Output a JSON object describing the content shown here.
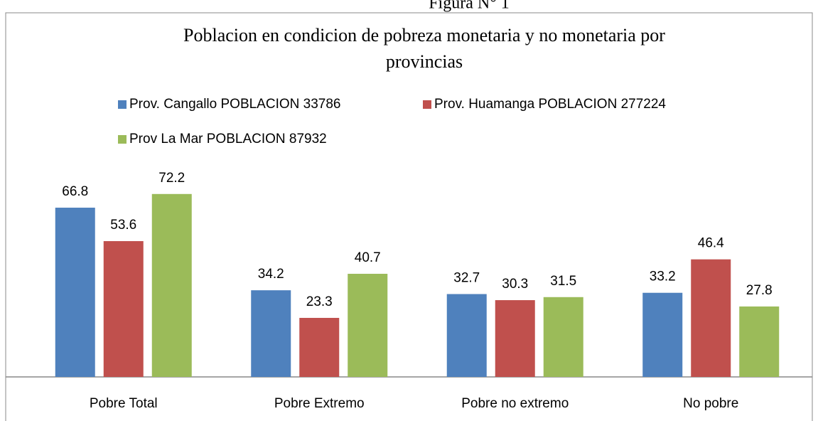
{
  "chart_data": {
    "type": "bar",
    "caption": "Figura N° 1",
    "title": [
      "Poblacion en condicion de pobreza monetaria y no monetaria por",
      "provincias"
    ],
    "categories": [
      "Pobre Total",
      "Pobre Extremo",
      "Pobre no extremo",
      "No pobre"
    ],
    "series": [
      {
        "name": "Prov. Cangallo POBLACION 33786",
        "color": "#4f81bd",
        "values": [
          66.8,
          34.2,
          32.7,
          33.2
        ]
      },
      {
        "name": "Prov. Huamanga POBLACION 277224",
        "color": "#c0504d",
        "values": [
          53.6,
          23.3,
          30.3,
          46.4
        ]
      },
      {
        "name": "Prov La Mar POBLACION 87932",
        "color": "#9bbb59",
        "values": [
          72.2,
          40.7,
          31.5,
          27.8
        ]
      }
    ],
    "ylim": [
      0,
      80
    ],
    "legend": "top"
  }
}
